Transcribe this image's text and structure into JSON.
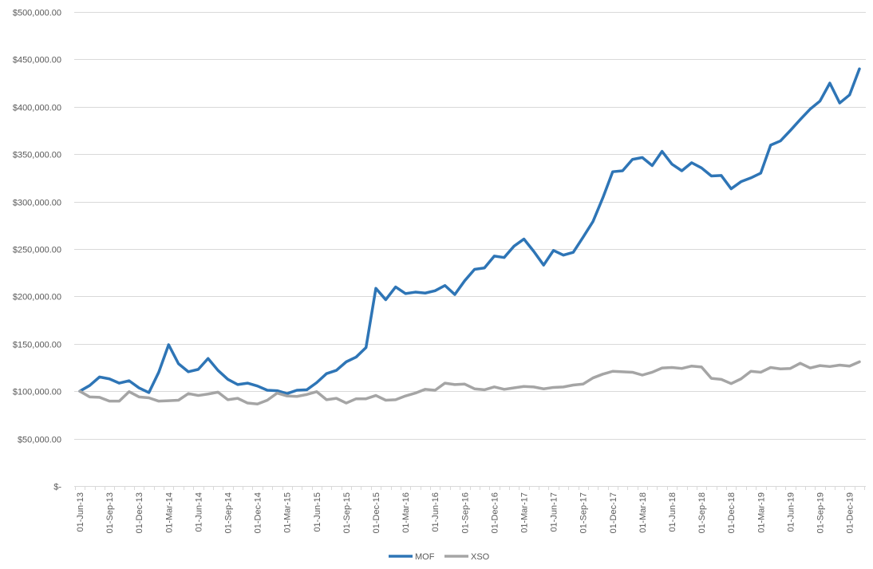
{
  "chart_data": {
    "type": "line",
    "title": "",
    "xlabel": "",
    "ylabel": "",
    "ylim": [
      0,
      500000
    ],
    "y_ticks": [
      0,
      50000,
      100000,
      150000,
      200000,
      250000,
      300000,
      350000,
      400000,
      450000,
      500000
    ],
    "y_tick_labels": [
      "$-",
      "$50,000.00",
      "$100,000.00",
      "$150,000.00",
      "$200,000.00",
      "$250,000.00",
      "$300,000.00",
      "$350,000.00",
      "$400,000.00",
      "$450,000.00",
      "$500,000.00"
    ],
    "x_tick_labels": [
      "01-Jun-13",
      "01-Sep-13",
      "01-Dec-13",
      "01-Mar-14",
      "01-Jun-14",
      "01-Sep-14",
      "01-Dec-14",
      "01-Mar-15",
      "01-Jun-15",
      "01-Sep-15",
      "01-Dec-15",
      "01-Mar-16",
      "01-Jun-16",
      "01-Sep-16",
      "01-Dec-16",
      "01-Mar-17",
      "01-Jun-17",
      "01-Sep-17",
      "01-Dec-17",
      "01-Mar-18",
      "01-Jun-18",
      "01-Sep-18",
      "01-Dec-18",
      "01-Mar-19",
      "01-Jun-19",
      "01-Sep-19",
      "01-Dec-19"
    ],
    "x": [
      "Jun-13",
      "Jul-13",
      "Aug-13",
      "Sep-13",
      "Oct-13",
      "Nov-13",
      "Dec-13",
      "Jan-14",
      "Feb-14",
      "Mar-14",
      "Apr-14",
      "May-14",
      "Jun-14",
      "Jul-14",
      "Aug-14",
      "Sep-14",
      "Oct-14",
      "Nov-14",
      "Dec-14",
      "Jan-15",
      "Feb-15",
      "Mar-15",
      "Apr-15",
      "May-15",
      "Jun-15",
      "Jul-15",
      "Aug-15",
      "Sep-15",
      "Oct-15",
      "Nov-15",
      "Dec-15",
      "Jan-16",
      "Feb-16",
      "Mar-16",
      "Apr-16",
      "May-16",
      "Jun-16",
      "Jul-16",
      "Aug-16",
      "Sep-16",
      "Oct-16",
      "Nov-16",
      "Dec-16",
      "Jan-17",
      "Feb-17",
      "Mar-17",
      "Apr-17",
      "May-17",
      "Jun-17",
      "Jul-17",
      "Aug-17",
      "Sep-17",
      "Oct-17",
      "Nov-17",
      "Dec-17",
      "Jan-18",
      "Feb-18",
      "Mar-18",
      "Apr-18",
      "May-18",
      "Jun-18",
      "Jul-18",
      "Aug-18",
      "Sep-18",
      "Oct-18",
      "Nov-18",
      "Dec-18",
      "Jan-19",
      "Feb-19",
      "Mar-19",
      "Apr-19",
      "May-19",
      "Jun-19",
      "Jul-19",
      "Aug-19",
      "Sep-19",
      "Oct-19",
      "Nov-19",
      "Dec-19",
      "Jan-20"
    ],
    "series": [
      {
        "name": "MOF",
        "color": "#2e75b6",
        "values": [
          100000,
          106000,
          115000,
          113000,
          108500,
          111000,
          103500,
          98500,
          120000,
          149000,
          129000,
          120500,
          123000,
          134500,
          122000,
          112500,
          107000,
          108500,
          105500,
          101000,
          100500,
          97500,
          101000,
          101500,
          109000,
          118500,
          122000,
          131000,
          136000,
          146000,
          208500,
          196500,
          210000,
          203000,
          204500,
          203500,
          206000,
          211500,
          202000,
          216500,
          228500,
          230000,
          242500,
          241000,
          253000,
          260500,
          247500,
          233000,
          248500,
          243500,
          246500,
          262500,
          279000,
          304000,
          331500,
          332500,
          344500,
          346500,
          338000,
          353000,
          339500,
          332500,
          341000,
          335500,
          327000,
          327500,
          313500,
          321000,
          325000,
          330000,
          359500,
          364000,
          375000,
          386500,
          397500,
          406000,
          425000,
          404000,
          412500,
          440000
        ]
      },
      {
        "name": "XSO",
        "color": "#a5a5a5",
        "values": [
          100000,
          94000,
          93500,
          89500,
          89500,
          99500,
          94000,
          93000,
          89500,
          90000,
          90500,
          97500,
          95500,
          97000,
          99000,
          91000,
          92500,
          87500,
          86500,
          90500,
          98000,
          95000,
          94500,
          96500,
          99500,
          91000,
          92500,
          87500,
          92000,
          92000,
          95500,
          90500,
          91000,
          95000,
          98000,
          102000,
          101000,
          108500,
          107000,
          107500,
          102500,
          101500,
          104500,
          102000,
          103500,
          105000,
          104500,
          102500,
          104000,
          104500,
          106500,
          107500,
          114000,
          118000,
          121000,
          120500,
          120000,
          117000,
          120000,
          124500,
          125000,
          124000,
          126500,
          125500,
          113500,
          112500,
          108000,
          113000,
          121000,
          120000,
          125000,
          123500,
          124000,
          129500,
          124500,
          127000,
          126000,
          127500,
          126500,
          131000
        ]
      }
    ],
    "grid": "horizontal",
    "legend_position": "bottom-center"
  }
}
